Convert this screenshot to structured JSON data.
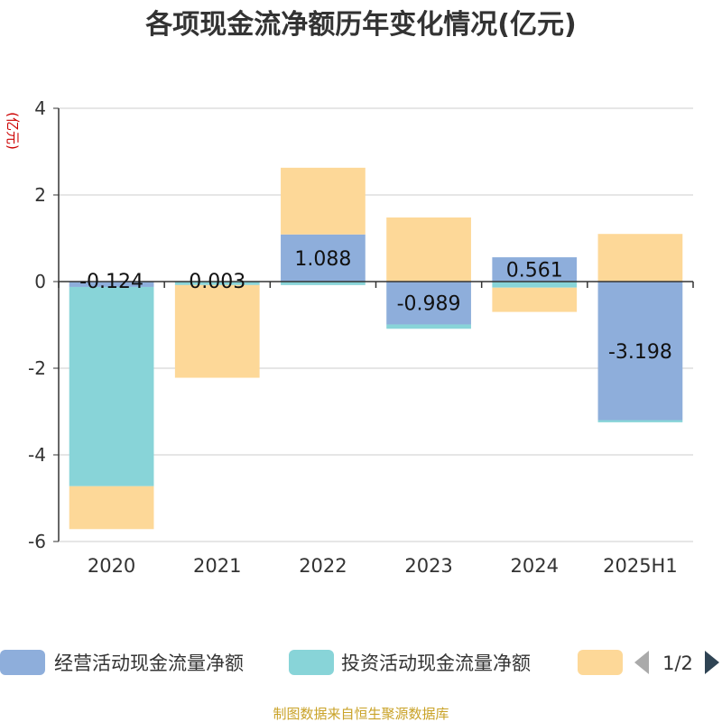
{
  "chart_data": {
    "type": "bar",
    "stacked": true,
    "title": "各项现金流净额历年变化情况(亿元)",
    "ylabel": "(亿元)",
    "xlabel": "",
    "ylim": [
      -6,
      4
    ],
    "yticks": [
      4,
      2,
      0,
      -2,
      -4,
      -6
    ],
    "grid": true,
    "categories": [
      "2020",
      "2021",
      "2022",
      "2023",
      "2024",
      "2025H1"
    ],
    "series": [
      {
        "name": "经营活动现金流量净额",
        "color": "#8eaedb",
        "values": [
          -0.124,
          0.003,
          1.088,
          -0.989,
          0.561,
          -3.198
        ]
      },
      {
        "name": "投资活动现金流量净额",
        "color": "#88d4d8",
        "values": [
          -4.6,
          -0.08,
          -0.08,
          -0.1,
          -0.14,
          -0.05
        ]
      },
      {
        "name": "",
        "color": "#fdd898",
        "values": [
          -0.99,
          -2.14,
          1.54,
          1.48,
          -0.56,
          1.1
        ]
      }
    ],
    "data_labels": [
      "-0.124",
      "0.003",
      "1.088",
      "-0.989",
      "0.561",
      "-3.198"
    ],
    "legend": {
      "placement": "bottom",
      "page": "1/2"
    }
  },
  "source": "制图数据来自恒生聚源数据库"
}
